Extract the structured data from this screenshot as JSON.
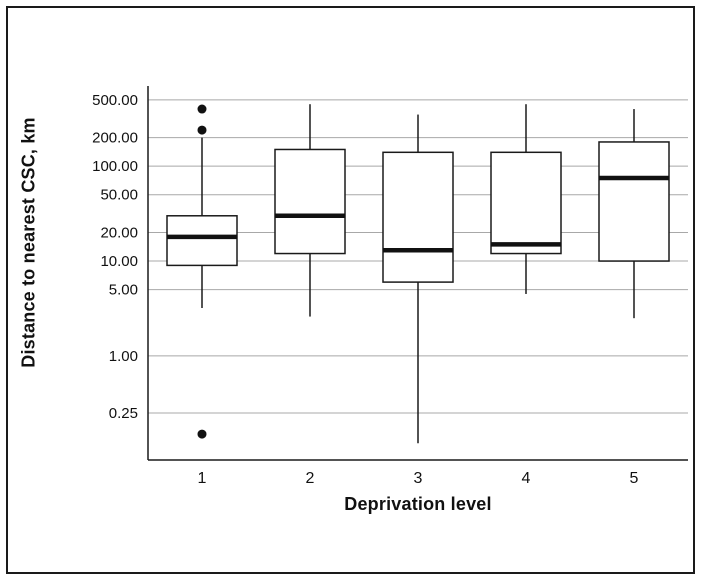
{
  "chart_data": {
    "type": "boxplot",
    "title": "",
    "xlabel": "Deprivation level",
    "ylabel": "Distance to nearest CSC, km",
    "x_categories": [
      "1",
      "2",
      "3",
      "4",
      "5"
    ],
    "y_scale": "log",
    "ylim": [
      0.08,
      700
    ],
    "y_ticks": [
      500,
      200,
      100,
      50,
      20,
      10,
      5,
      1,
      0.25
    ],
    "y_tick_labels": [
      "500.00",
      "200.00",
      "100.00",
      "50.00",
      "20.00",
      "10.00",
      "5.00",
      "1.00",
      "0.25"
    ],
    "grid": true,
    "legend": "none",
    "series": [
      {
        "category": "1",
        "whisker_low": 3.2,
        "q1": 9,
        "median": 18,
        "q3": 30,
        "whisker_high": 200,
        "outliers": [
          400,
          240,
          0.15
        ]
      },
      {
        "category": "2",
        "whisker_low": 2.6,
        "q1": 12,
        "median": 30,
        "q3": 150,
        "whisker_high": 450,
        "outliers": []
      },
      {
        "category": "3",
        "whisker_low": 0.12,
        "q1": 6,
        "median": 13,
        "q3": 140,
        "whisker_high": 350,
        "outliers": []
      },
      {
        "category": "4",
        "whisker_low": 4.5,
        "q1": 12,
        "median": 15,
        "q3": 140,
        "whisker_high": 450,
        "outliers": []
      },
      {
        "category": "5",
        "whisker_low": 2.5,
        "q1": 10,
        "median": 75,
        "q3": 180,
        "whisker_high": 400,
        "outliers": []
      }
    ],
    "colors": {
      "box_stroke": "#1a1a1a",
      "box_fill": "#ffffff",
      "median": "#111111",
      "grid": "#a8a8a8",
      "axis": "#1a1a1a",
      "text": "#111111"
    }
  }
}
